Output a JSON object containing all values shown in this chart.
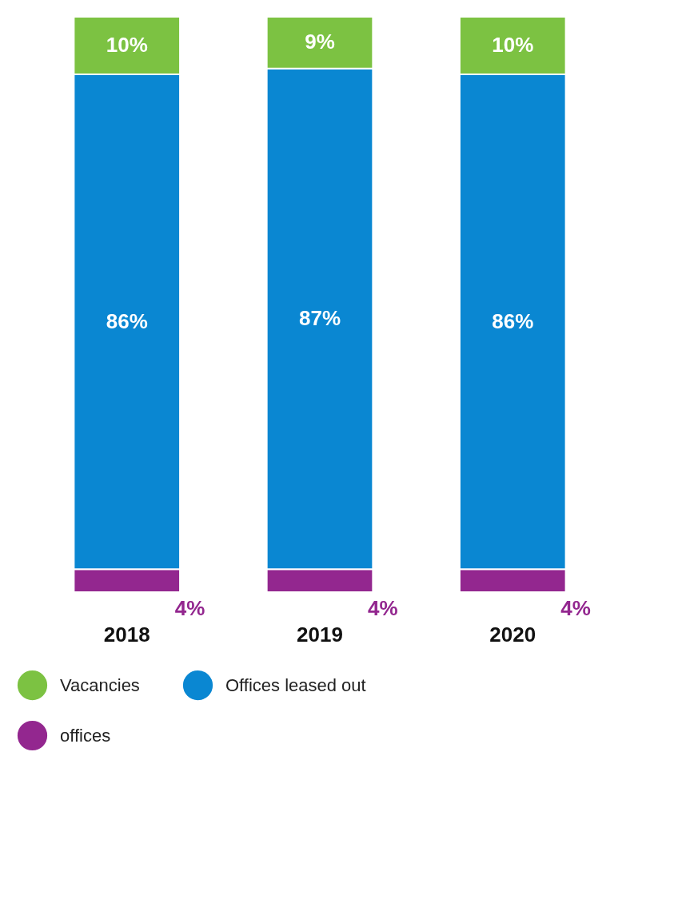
{
  "chart_data": {
    "type": "bar",
    "stacked": true,
    "categories": [
      "2018",
      "2019",
      "2020"
    ],
    "legend": "bottom",
    "series": [
      {
        "name": "offices",
        "color": "#93278f",
        "values": [
          4,
          4,
          4
        ],
        "value_labels": [
          "4%",
          "4%",
          "4%"
        ]
      },
      {
        "name": "Offices leased out",
        "color": "#0a87d2",
        "values": [
          86,
          87,
          86
        ],
        "value_labels": [
          "86%",
          "87%",
          "86%"
        ]
      },
      {
        "name": "Vacancies",
        "color": "#7cc242",
        "values": [
          10,
          9,
          10
        ],
        "value_labels": [
          "10%",
          "9%",
          "10%"
        ]
      }
    ]
  }
}
